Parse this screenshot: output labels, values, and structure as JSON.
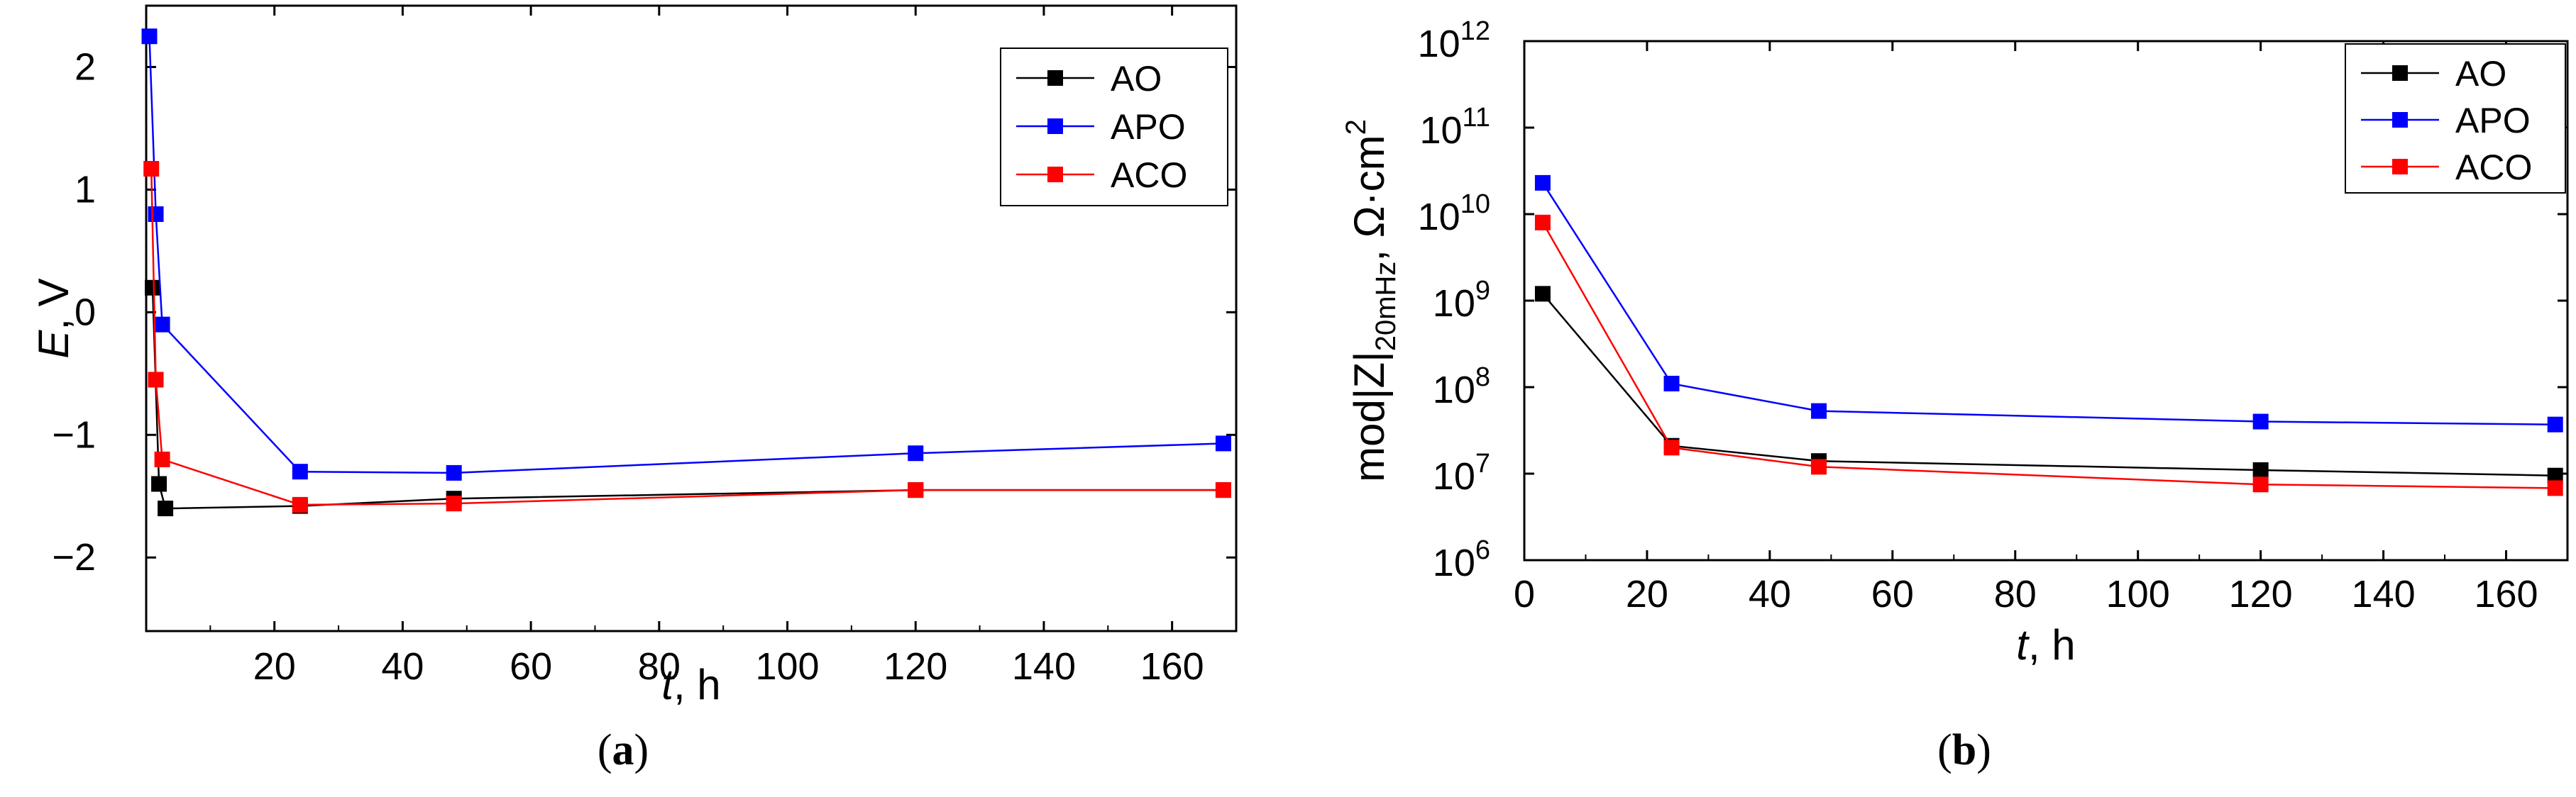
{
  "chart_data": [
    {
      "type": "line",
      "panel_label": "a",
      "xlabel": {
        "italic": "t",
        "rest": ", h"
      },
      "ylabel": {
        "italic": "E",
        "rest": ", V"
      },
      "xlim": [
        0,
        170
      ],
      "ylim": [
        -2.6,
        2.5
      ],
      "yscale": "linear",
      "xticks": [
        20,
        40,
        60,
        80,
        100,
        120,
        140,
        160
      ],
      "yticks": [
        -2,
        -1,
        0,
        1,
        2
      ],
      "ytick_labels": [
        "−2",
        "−1",
        "0",
        "1",
        "2"
      ],
      "legend_position": "top-right",
      "series": [
        {
          "name": "AO",
          "color": "#000000",
          "x": [
            1,
            2,
            3,
            24,
            48,
            120,
            168
          ],
          "y": [
            0.2,
            -1.4,
            -1.6,
            -1.58,
            -1.52,
            -1.45,
            -1.45
          ]
        },
        {
          "name": "APO",
          "color": "#0000ff",
          "x": [
            0.5,
            1.5,
            2.5,
            24,
            48,
            120,
            168
          ],
          "y": [
            2.25,
            0.8,
            -0.1,
            -1.3,
            -1.31,
            -1.15,
            -1.07
          ]
        },
        {
          "name": "ACO",
          "color": "#ff0000",
          "x": [
            0.8,
            1.5,
            2.5,
            24,
            48,
            120,
            168
          ],
          "y": [
            1.17,
            -0.55,
            -1.2,
            -1.57,
            -1.56,
            -1.45,
            -1.45
          ]
        }
      ]
    },
    {
      "type": "line",
      "panel_label": "b",
      "xlabel": {
        "italic": "t",
        "rest": ", h"
      },
      "ylabel": {
        "pre": "mod|Z|",
        "sub": "20mHz",
        "mid": ", Ω·cm",
        "sup": "2"
      },
      "xlim": [
        0,
        170
      ],
      "ylim": [
        1000000,
        1000000000000
      ],
      "yscale": "log",
      "xticks": [
        0,
        20,
        40,
        60,
        80,
        100,
        120,
        140,
        160
      ],
      "yticks": [
        1000000,
        10000000,
        100000000,
        1000000000,
        10000000000,
        100000000000,
        1000000000000
      ],
      "ytick_base": "10",
      "ytick_exponents": [
        "6",
        "7",
        "8",
        "9",
        "10",
        "11",
        "12"
      ],
      "legend_position": "top-right",
      "series": [
        {
          "name": "AO",
          "color": "#000000",
          "x": [
            3,
            24,
            48,
            120,
            168
          ],
          "y": [
            1200000000,
            21000000,
            14000000,
            11000000,
            9500000
          ]
        },
        {
          "name": "APO",
          "color": "#0000ff",
          "x": [
            3,
            24,
            48,
            120,
            168
          ],
          "y": [
            23000000000,
            110000000,
            53000000,
            40000000,
            37000000
          ]
        },
        {
          "name": "ACO",
          "color": "#ff0000",
          "x": [
            3,
            24,
            48,
            120,
            168
          ],
          "y": [
            8000000000,
            20000000,
            12000000,
            7500000,
            6800000
          ]
        }
      ]
    }
  ]
}
